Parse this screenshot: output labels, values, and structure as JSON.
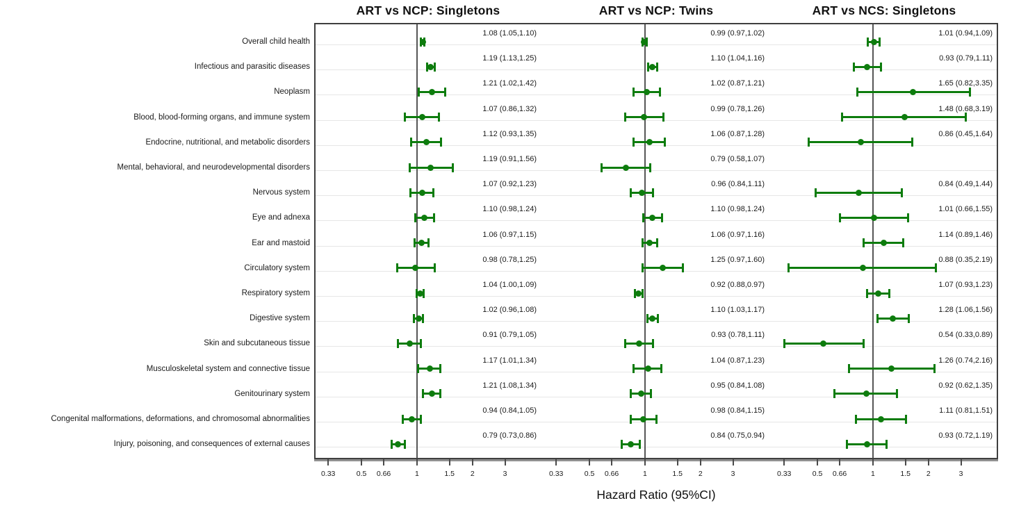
{
  "colors": {
    "marker": "#0d7c0d",
    "reference_line": "#565656",
    "panel_border": "#3f3f3f",
    "grid_line": "#e6e6e6",
    "text": "#1a1a1a"
  },
  "chart_data": {
    "type": "scatter",
    "subtype": "forest-plot",
    "title": "",
    "xlabel": "Hazard Ratio (95%CI)",
    "ylabel": "",
    "x_scale": "log",
    "x_ticks": [
      0.33,
      0.5,
      0.66,
      1,
      1.5,
      2,
      3
    ],
    "x_range": [
      0.277,
      4.77
    ],
    "reference_line": 1,
    "grid": "horizontal",
    "marker": "filled-circle-with-whisker-caps",
    "categories": [
      "Overall child health",
      "Infectious and parasitic diseases",
      "Neoplasm",
      "Blood, blood-forming organs, and immune system",
      "Endocrine, nutritional, and metabolic disorders",
      "Mental, behavioral, and neurodevelopmental disorders",
      "Nervous system",
      "Eye and adnexa",
      "Ear and mastoid",
      "Circulatory system",
      "Respiratory system",
      "Digestive system",
      "Skin and subcutaneous tissue",
      "Musculoskeletal system and connective tissue",
      "Genitourinary system",
      "Congenital malformations, deformations, and chromosomal abnormalities",
      "Injury, poisoning, and consequences of external causes"
    ],
    "panels": [
      {
        "title": "ART vs NCP: Singletons",
        "estimates": [
          {
            "hr": "1.08",
            "lo": "1.05",
            "hi": "1.10"
          },
          {
            "hr": "1.19",
            "lo": "1.13",
            "hi": "1.25"
          },
          {
            "hr": "1.21",
            "lo": "1.02",
            "hi": "1.42"
          },
          {
            "hr": "1.07",
            "lo": "0.86",
            "hi": "1.32"
          },
          {
            "hr": "1.12",
            "lo": "0.93",
            "hi": "1.35"
          },
          {
            "hr": "1.19",
            "lo": "0.91",
            "hi": "1.56"
          },
          {
            "hr": "1.07",
            "lo": "0.92",
            "hi": "1.23"
          },
          {
            "hr": "1.10",
            "lo": "0.98",
            "hi": "1.24"
          },
          {
            "hr": "1.06",
            "lo": "0.97",
            "hi": "1.15"
          },
          {
            "hr": "0.98",
            "lo": "0.78",
            "hi": "1.25"
          },
          {
            "hr": "1.04",
            "lo": "1.00",
            "hi": "1.09"
          },
          {
            "hr": "1.02",
            "lo": "0.96",
            "hi": "1.08"
          },
          {
            "hr": "0.91",
            "lo": "0.79",
            "hi": "1.05"
          },
          {
            "hr": "1.17",
            "lo": "1.01",
            "hi": "1.34"
          },
          {
            "hr": "1.21",
            "lo": "1.08",
            "hi": "1.34"
          },
          {
            "hr": "0.94",
            "lo": "0.84",
            "hi": "1.05"
          },
          {
            "hr": "0.79",
            "lo": "0.73",
            "hi": "0.86"
          }
        ]
      },
      {
        "title": "ART vs NCP: Twins",
        "estimates": [
          {
            "hr": "0.99",
            "lo": "0.97",
            "hi": "1.02"
          },
          {
            "hr": "1.10",
            "lo": "1.04",
            "hi": "1.16"
          },
          {
            "hr": "1.02",
            "lo": "0.87",
            "hi": "1.21"
          },
          {
            "hr": "0.99",
            "lo": "0.78",
            "hi": "1.26"
          },
          {
            "hr": "1.06",
            "lo": "0.87",
            "hi": "1.28"
          },
          {
            "hr": "0.79",
            "lo": "0.58",
            "hi": "1.07"
          },
          {
            "hr": "0.96",
            "lo": "0.84",
            "hi": "1.11"
          },
          {
            "hr": "1.10",
            "lo": "0.98",
            "hi": "1.24"
          },
          {
            "hr": "1.06",
            "lo": "0.97",
            "hi": "1.16"
          },
          {
            "hr": "1.25",
            "lo": "0.97",
            "hi": "1.60"
          },
          {
            "hr": "0.92",
            "lo": "0.88",
            "hi": "0.97"
          },
          {
            "hr": "1.10",
            "lo": "1.03",
            "hi": "1.17"
          },
          {
            "hr": "0.93",
            "lo": "0.78",
            "hi": "1.11"
          },
          {
            "hr": "1.04",
            "lo": "0.87",
            "hi": "1.23"
          },
          {
            "hr": "0.95",
            "lo": "0.84",
            "hi": "1.08"
          },
          {
            "hr": "0.98",
            "lo": "0.84",
            "hi": "1.15"
          },
          {
            "hr": "0.84",
            "lo": "0.75",
            "hi": "0.94"
          }
        ]
      },
      {
        "title": "ART vs NCS: Singletons",
        "estimates": [
          {
            "hr": "1.01",
            "lo": "0.94",
            "hi": "1.09"
          },
          {
            "hr": "0.93",
            "lo": "0.79",
            "hi": "1.11"
          },
          {
            "hr": "1.65",
            "lo": "0.82",
            "hi": "3.35"
          },
          {
            "hr": "1.48",
            "lo": "0.68",
            "hi": "3.19"
          },
          {
            "hr": "0.86",
            "lo": "0.45",
            "hi": "1.64"
          },
          null,
          {
            "hr": "0.84",
            "lo": "0.49",
            "hi": "1.44"
          },
          {
            "hr": "1.01",
            "lo": "0.66",
            "hi": "1.55"
          },
          {
            "hr": "1.14",
            "lo": "0.89",
            "hi": "1.46"
          },
          {
            "hr": "0.88",
            "lo": "0.35",
            "hi": "2.19"
          },
          {
            "hr": "1.07",
            "lo": "0.93",
            "hi": "1.23"
          },
          {
            "hr": "1.28",
            "lo": "1.06",
            "hi": "1.56"
          },
          {
            "hr": "0.54",
            "lo": "0.33",
            "hi": "0.89"
          },
          {
            "hr": "1.26",
            "lo": "0.74",
            "hi": "2.16"
          },
          {
            "hr": "0.92",
            "lo": "0.62",
            "hi": "1.35"
          },
          {
            "hr": "1.11",
            "lo": "0.81",
            "hi": "1.51"
          },
          {
            "hr": "0.93",
            "lo": "0.72",
            "hi": "1.19"
          }
        ]
      }
    ]
  }
}
